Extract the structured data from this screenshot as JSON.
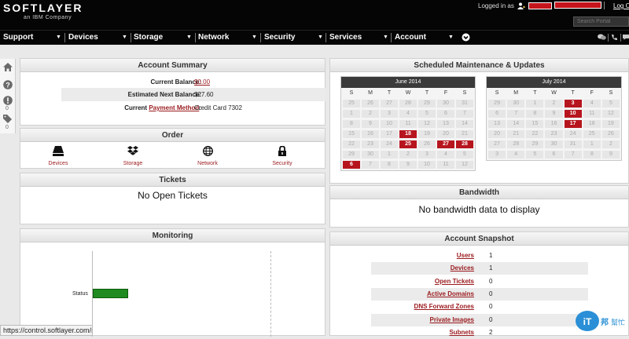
{
  "header": {
    "logo": "SOFTLAYER",
    "logo_sub": "an IBM Company",
    "logged_in_text": "Logged in as",
    "logout": "Log Out",
    "search_placeholder": "Search Portal"
  },
  "nav": {
    "items": [
      "Support",
      "Devices",
      "Storage",
      "Network",
      "Security",
      "Services",
      "Account"
    ]
  },
  "rail": {
    "messages_count": "0",
    "tickets_count": "0"
  },
  "account_summary": {
    "title": "Account Summary",
    "current_balance_label": "Current Balance:",
    "current_balance": "$0.00",
    "next_balance_label": "Estimated Next Balance:",
    "next_balance": "$27.60",
    "payment_prefix": "Current",
    "payment_link": "Payment Method",
    "payment_suffix": ":",
    "payment_value": "Credit Card 7302"
  },
  "order": {
    "title": "Order",
    "items": [
      {
        "label": "Devices",
        "icon": "server-icon"
      },
      {
        "label": "Storage",
        "icon": "dropbox-icon"
      },
      {
        "label": "Network",
        "icon": "globe-icon"
      },
      {
        "label": "Security",
        "icon": "lock-icon"
      }
    ]
  },
  "tickets": {
    "title": "Tickets",
    "message": "No Open Tickets"
  },
  "monitoring": {
    "title": "Monitoring",
    "status_label": "Status",
    "status_color": "#1f8a1f"
  },
  "maintenance": {
    "title": "Scheduled Maintenance & Updates",
    "dow": [
      "S",
      "M",
      "T",
      "W",
      "T",
      "F",
      "S"
    ],
    "calendars": [
      {
        "month": "June 2014",
        "days": [
          "25",
          "26",
          "27",
          "28",
          "29",
          "30",
          "31",
          "1",
          "2",
          "3",
          "4",
          "5",
          "6",
          "7",
          "8",
          "9",
          "10",
          "11",
          "12",
          "13",
          "14",
          "15",
          "16",
          "17",
          "18",
          "19",
          "20",
          "21",
          "22",
          "23",
          "24",
          "25",
          "26",
          "27",
          "28",
          "29",
          "30",
          "1",
          "2",
          "3",
          "4",
          "5",
          "6",
          "7",
          "8",
          "9",
          "10",
          "11",
          "12"
        ],
        "highlight": [
          24,
          31,
          33,
          34,
          42
        ]
      },
      {
        "month": "July 2014",
        "days": [
          "29",
          "30",
          "1",
          "2",
          "3",
          "4",
          "5",
          "6",
          "7",
          "8",
          "9",
          "10",
          "11",
          "12",
          "13",
          "14",
          "15",
          "16",
          "17",
          "18",
          "19",
          "20",
          "21",
          "22",
          "23",
          "24",
          "25",
          "26",
          "27",
          "28",
          "29",
          "30",
          "31",
          "1",
          "2",
          "3",
          "4",
          "5",
          "6",
          "7",
          "8",
          "9"
        ],
        "highlight": [
          4,
          11,
          18
        ]
      }
    ],
    "highlight_color": "#b7151e"
  },
  "bandwidth": {
    "title": "Bandwidth",
    "message": "No bandwidth data to display"
  },
  "snapshot": {
    "title": "Account Snapshot",
    "rows": [
      {
        "label": "Users",
        "value": "1"
      },
      {
        "label": "Devices",
        "value": "1"
      },
      {
        "label": "Open Tickets",
        "value": "0"
      },
      {
        "label": "Active Domains",
        "value": "0"
      },
      {
        "label": "DNS Forward Zones",
        "value": "0"
      },
      {
        "label": "Private Images",
        "value": "0"
      },
      {
        "label": "Subnets",
        "value": "2"
      }
    ]
  },
  "statusbar": {
    "url": "https://control.softlayer.com/#"
  },
  "watermark": {
    "text": "IT邦幫忙"
  }
}
